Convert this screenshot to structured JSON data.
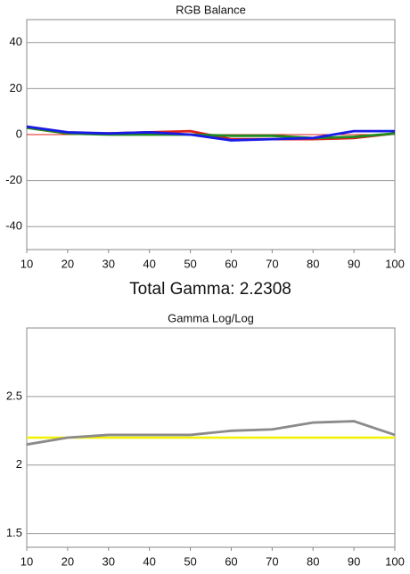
{
  "heading": "Total Gamma: 2.2308",
  "chart_data": [
    {
      "type": "line",
      "title": "RGB Balance",
      "x": [
        10,
        20,
        30,
        40,
        50,
        60,
        70,
        80,
        90,
        100
      ],
      "series": [
        {
          "name": "Red",
          "color": "#e0201b",
          "values": [
            3,
            0.5,
            0.5,
            1,
            1.5,
            -2,
            -2,
            -2,
            -1.5,
            0.5
          ]
        },
        {
          "name": "Green",
          "color": "#1f8a1f",
          "values": [
            3,
            0.5,
            0,
            0,
            0,
            -0.5,
            -0.5,
            -1.5,
            -1,
            0.5
          ]
        },
        {
          "name": "Blue",
          "color": "#1a1ae6",
          "values": [
            3.5,
            1,
            0.5,
            1,
            0,
            -2.5,
            -2,
            -1.5,
            1.5,
            1.5
          ]
        }
      ],
      "reference": {
        "value": 0,
        "color": "#e0201b"
      },
      "xlim": [
        10,
        100
      ],
      "xticks": [
        10,
        20,
        30,
        40,
        50,
        60,
        70,
        80,
        90,
        100
      ],
      "ylim": [
        -50,
        50
      ],
      "yticks": [
        -40,
        -20,
        0,
        20,
        40
      ],
      "grid": true
    },
    {
      "type": "line",
      "title": "Gamma Log/Log",
      "x": [
        10,
        20,
        30,
        40,
        50,
        60,
        70,
        80,
        90,
        100
      ],
      "series": [
        {
          "name": "Gamma",
          "color": "#8a8a8a",
          "values": [
            2.15,
            2.2,
            2.22,
            2.22,
            2.22,
            2.25,
            2.26,
            2.31,
            2.32,
            2.22
          ]
        }
      ],
      "reference": {
        "value": 2.2,
        "color": "#f2f200"
      },
      "xlim": [
        10,
        100
      ],
      "xticks": [
        10,
        20,
        30,
        40,
        50,
        60,
        70,
        80,
        90,
        100
      ],
      "ylim": [
        1.4,
        3
      ],
      "yticks": [
        1.5,
        2,
        2.5
      ],
      "grid": true
    }
  ]
}
